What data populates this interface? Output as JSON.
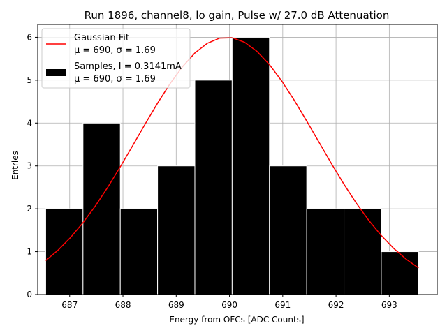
{
  "chart_data": {
    "type": "bar",
    "title": "Run 1896, channel8, lo gain, Pulse w/ 27.0 dB Attenuation",
    "xlabel": "Energy from OFCs [ADC Counts]",
    "ylabel": "Entries",
    "xlim": [
      686.4,
      693.9
    ],
    "ylim": [
      0,
      6.3
    ],
    "xticks": [
      687,
      688,
      689,
      690,
      691,
      692,
      693
    ],
    "yticks": [
      0,
      1,
      2,
      3,
      4,
      5,
      6
    ],
    "grid": true,
    "legend_position": "top-left",
    "histogram": {
      "name": "Samples, I = 0.3141mA",
      "stats": "μ = 690, σ = 1.69",
      "bin_edges": [
        686.55,
        687.25,
        687.95,
        688.65,
        689.35,
        690.05,
        690.75,
        691.45,
        692.15,
        692.85,
        693.55
      ],
      "counts": [
        2,
        4,
        2,
        3,
        5,
        6,
        3,
        2,
        2,
        1
      ],
      "color": "#000000"
    },
    "fit": {
      "name": "Gaussian Fit",
      "stats": "μ = 690, σ = 1.69",
      "mu": 689.95,
      "sigma": 1.69,
      "amplitude": 6.0,
      "x_range": [
        686.55,
        693.55
      ],
      "color": "#ff0000"
    }
  }
}
